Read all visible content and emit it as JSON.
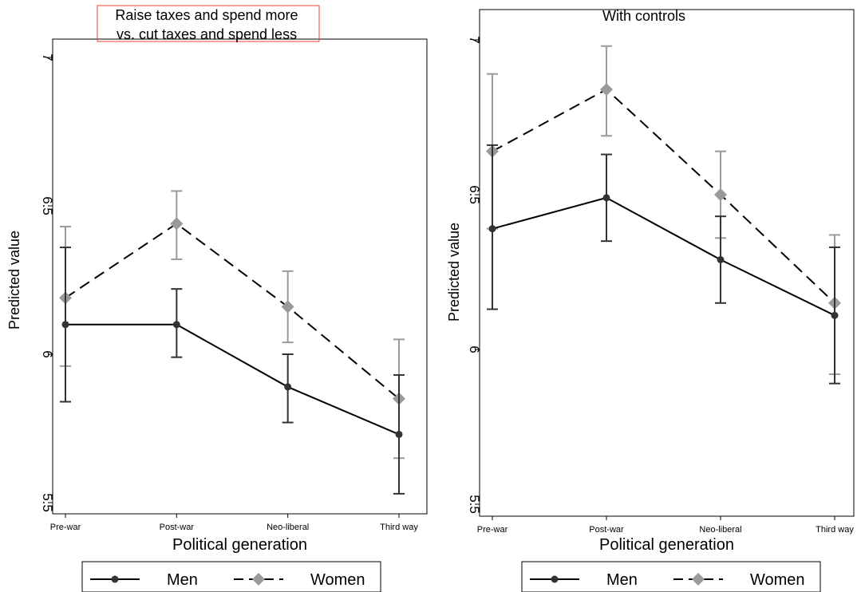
{
  "chart_data": [
    {
      "type": "line",
      "title_lines": [
        "Raise taxes and spend more",
        "vs. cut taxes and spend less"
      ],
      "xlabel": "Political generation",
      "ylabel": "Predicted value",
      "categories": [
        "Pre-war",
        "Post-war",
        "Neo-liberal",
        "Third way"
      ],
      "ylim": [
        5.5,
        7
      ],
      "yticks": [
        "5.5",
        "6",
        "6.5",
        "7"
      ],
      "grid": false,
      "legend_position": "bottom",
      "series": [
        {
          "name": "Men",
          "style": "solid",
          "color": "#333333",
          "marker": "circle",
          "values": [
            6.1,
            6.1,
            5.89,
            5.73
          ],
          "ci_low": [
            5.84,
            5.99,
            5.77,
            5.53
          ],
          "ci_high": [
            6.36,
            6.22,
            6.0,
            5.93
          ]
        },
        {
          "name": "Women",
          "style": "dashed",
          "color": "#9a9a9a",
          "marker": "diamond",
          "values": [
            6.19,
            6.44,
            6.16,
            5.85
          ],
          "ci_low": [
            5.96,
            6.32,
            6.04,
            5.65
          ],
          "ci_high": [
            6.43,
            6.55,
            6.28,
            6.05
          ]
        }
      ]
    },
    {
      "type": "line",
      "title_lines": [
        "With controls"
      ],
      "xlabel": "Political generation",
      "ylabel": "Predicted value",
      "categories": [
        "Pre-war",
        "Post-war",
        "Neo-liberal",
        "Third way"
      ],
      "ylim": [
        5.5,
        7
      ],
      "yticks": [
        "5.5",
        "6",
        "6.5",
        "7"
      ],
      "grid": false,
      "legend_position": "bottom",
      "series": [
        {
          "name": "Men",
          "style": "solid",
          "color": "#333333",
          "marker": "circle",
          "values": [
            6.39,
            6.49,
            6.29,
            6.11
          ],
          "ci_low": [
            6.13,
            6.35,
            6.15,
            5.89
          ],
          "ci_high": [
            6.66,
            6.63,
            6.43,
            6.33
          ]
        },
        {
          "name": "Women",
          "style": "dashed",
          "color": "#9a9a9a",
          "marker": "diamond",
          "values": [
            6.64,
            6.84,
            6.5,
            6.15
          ],
          "ci_low": [
            6.39,
            6.69,
            6.36,
            5.92
          ],
          "ci_high": [
            6.89,
            6.98,
            6.64,
            6.37
          ]
        }
      ]
    }
  ]
}
